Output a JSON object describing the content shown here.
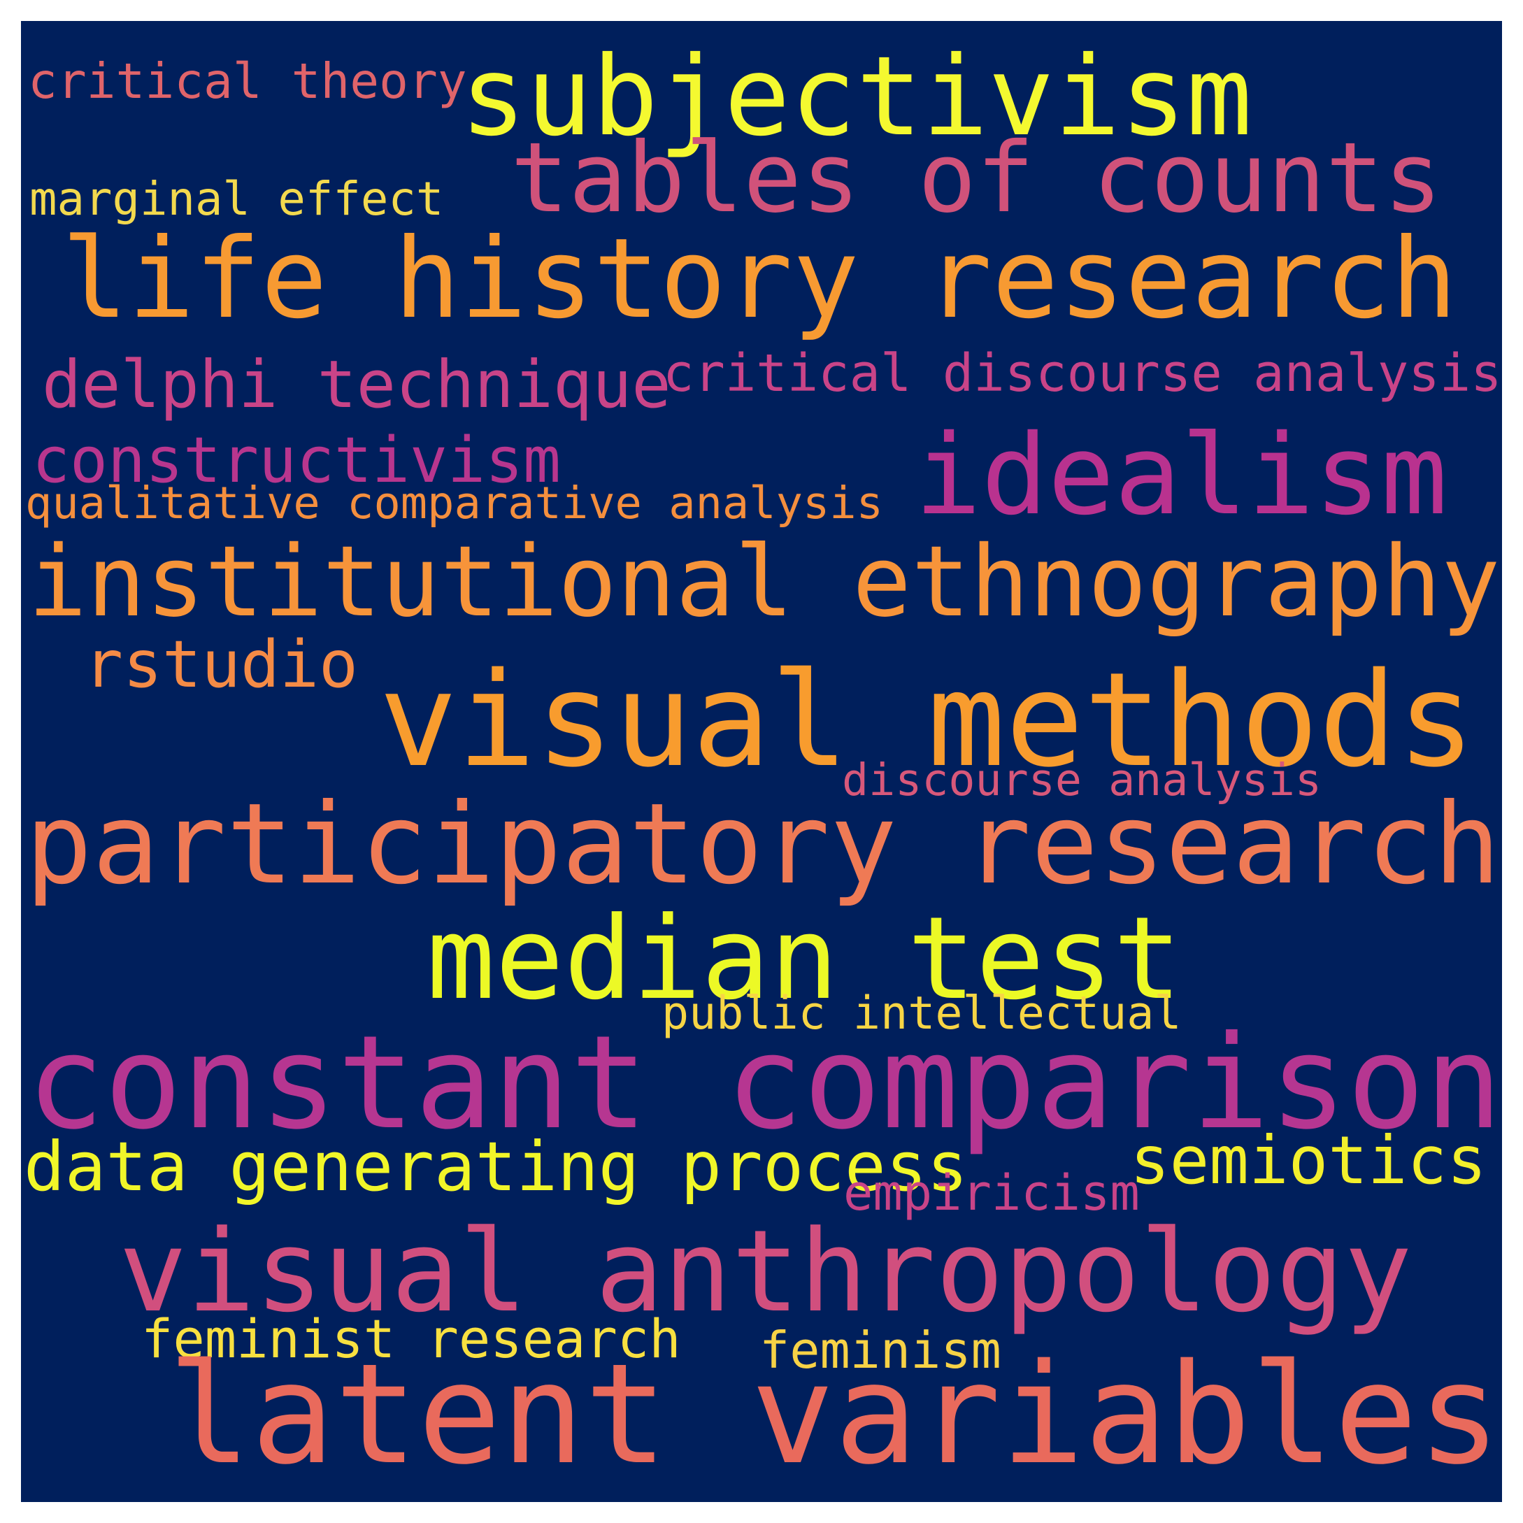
{
  "background": "#001f5c",
  "words": [
    {
      "text": "subjectivism",
      "color": "#f4f930"
    },
    {
      "text": "critical theory",
      "color": "#e0646a"
    },
    {
      "text": "tables of counts",
      "color": "#d0527a"
    },
    {
      "text": "marginal effect",
      "color": "#f3d94e"
    },
    {
      "text": "life history research",
      "color": "#f79a32"
    },
    {
      "text": "delphi technique",
      "color": "#c94488"
    },
    {
      "text": "critical discourse analysis",
      "color": "#c94488"
    },
    {
      "text": "constructivism",
      "color": "#b8368e"
    },
    {
      "text": "idealism",
      "color": "#b9328f"
    },
    {
      "text": "qualitative comparative analysis",
      "color": "#f58f3e"
    },
    {
      "text": "institutional ethnography",
      "color": "#f7943a"
    },
    {
      "text": "rstudio",
      "color": "#f58b46"
    },
    {
      "text": "visual methods",
      "color": "#f89c2e"
    },
    {
      "text": "discourse analysis",
      "color": "#d8587a"
    },
    {
      "text": "participatory research",
      "color": "#ef7a55"
    },
    {
      "text": "median test",
      "color": "#ecf926"
    },
    {
      "text": "public intellectual",
      "color": "#f7d545"
    },
    {
      "text": "constant comparison",
      "color": "#b63691"
    },
    {
      "text": "data generating process",
      "color": "#f1f629"
    },
    {
      "text": "semiotics",
      "color": "#f3ef2c"
    },
    {
      "text": "empiricism",
      "color": "#c94488"
    },
    {
      "text": "visual anthropology",
      "color": "#d14f7e"
    },
    {
      "text": "feminist research",
      "color": "#f8e040"
    },
    {
      "text": "feminism",
      "color": "#f7d246"
    },
    {
      "text": "latent variables",
      "color": "#e96a5c"
    }
  ]
}
